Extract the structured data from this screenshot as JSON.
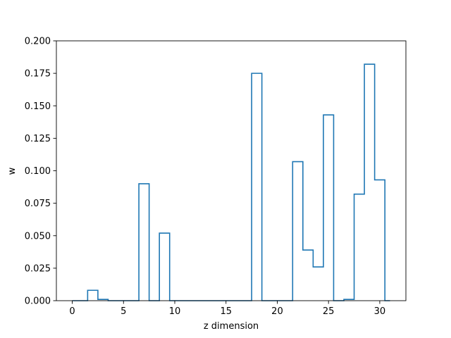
{
  "chart_data": {
    "type": "step",
    "xlabel": "z dimension",
    "ylabel": "w",
    "xlim": [
      -1.55,
      32.55
    ],
    "ylim": [
      0.0,
      0.2
    ],
    "xticks": [
      0,
      5,
      10,
      15,
      20,
      25,
      30
    ],
    "yticks": [
      0.0,
      0.025,
      0.05,
      0.075,
      0.1,
      0.125,
      0.15,
      0.175,
      0.2
    ],
    "ytick_labels": [
      "0.000",
      "0.025",
      "0.050",
      "0.075",
      "0.100",
      "0.125",
      "0.150",
      "0.175",
      "0.200"
    ],
    "line_color": "#1f77b4",
    "grid": false,
    "x": [
      0,
      1,
      2,
      3,
      4,
      5,
      6,
      7,
      8,
      9,
      10,
      11,
      12,
      13,
      14,
      15,
      16,
      17,
      18,
      19,
      20,
      21,
      22,
      23,
      24,
      25,
      26,
      27,
      28,
      29,
      30,
      31
    ],
    "values": [
      0.0,
      0.0,
      0.008,
      0.001,
      0.0,
      0.0,
      0.0,
      0.09,
      0.0,
      0.052,
      0.0,
      0.0,
      0.0,
      0.0,
      0.0,
      0.0,
      0.0,
      0.0,
      0.175,
      0.0,
      0.0,
      0.0,
      0.107,
      0.039,
      0.026,
      0.143,
      0.0,
      0.001,
      0.082,
      0.182,
      0.093,
      0.0
    ]
  }
}
